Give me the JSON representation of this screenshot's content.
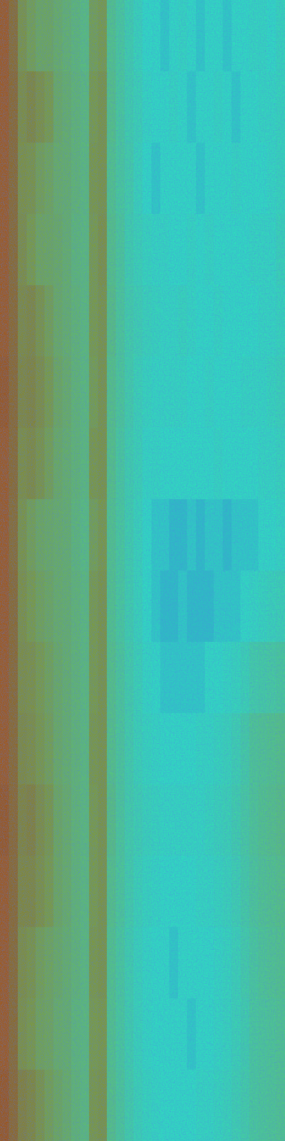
{
  "chart_data": {
    "type": "heatmap",
    "tick_labels": false,
    "zlim": [
      0,
      1
    ],
    "cells": [
      [
        0.9,
        0.74,
        0.62,
        0.58,
        0.55,
        0.55,
        0.53,
        0.51,
        0.49,
        0.47,
        0.58,
        0.6,
        0.44,
        0.4,
        0.36,
        0.33,
        0.3,
        0.3,
        0.29,
        0.3,
        0.31,
        0.3,
        0.29,
        0.3,
        0.3,
        0.29,
        0.3,
        0.3,
        0.31,
        0.31,
        0.3,
        0.32
      ],
      [
        0.9,
        0.76,
        0.64,
        0.66,
        0.63,
        0.6,
        0.54,
        0.52,
        0.5,
        0.48,
        0.6,
        0.62,
        0.45,
        0.4,
        0.36,
        0.34,
        0.31,
        0.3,
        0.3,
        0.31,
        0.3,
        0.29,
        0.3,
        0.3,
        0.31,
        0.3,
        0.29,
        0.3,
        0.3,
        0.31,
        0.31,
        0.32
      ],
      [
        0.89,
        0.75,
        0.63,
        0.62,
        0.58,
        0.56,
        0.53,
        0.52,
        0.5,
        0.48,
        0.61,
        0.62,
        0.44,
        0.4,
        0.37,
        0.33,
        0.3,
        0.29,
        0.3,
        0.3,
        0.3,
        0.3,
        0.29,
        0.3,
        0.3,
        0.3,
        0.31,
        0.3,
        0.3,
        0.3,
        0.31,
        0.32
      ],
      [
        0.9,
        0.75,
        0.64,
        0.6,
        0.56,
        0.55,
        0.54,
        0.52,
        0.49,
        0.48,
        0.6,
        0.63,
        0.45,
        0.41,
        0.36,
        0.34,
        0.32,
        0.31,
        0.31,
        0.3,
        0.3,
        0.31,
        0.3,
        0.31,
        0.3,
        0.3,
        0.3,
        0.3,
        0.31,
        0.31,
        0.31,
        0.33
      ],
      [
        0.9,
        0.76,
        0.65,
        0.66,
        0.62,
        0.58,
        0.54,
        0.52,
        0.5,
        0.48,
        0.6,
        0.62,
        0.46,
        0.41,
        0.37,
        0.35,
        0.33,
        0.32,
        0.31,
        0.31,
        0.32,
        0.31,
        0.3,
        0.3,
        0.31,
        0.3,
        0.3,
        0.3,
        0.3,
        0.31,
        0.31,
        0.32
      ],
      [
        0.91,
        0.76,
        0.66,
        0.67,
        0.64,
        0.6,
        0.55,
        0.53,
        0.5,
        0.48,
        0.59,
        0.62,
        0.45,
        0.41,
        0.37,
        0.34,
        0.32,
        0.31,
        0.31,
        0.31,
        0.31,
        0.3,
        0.3,
        0.31,
        0.3,
        0.3,
        0.3,
        0.31,
        0.31,
        0.31,
        0.32,
        0.33
      ],
      [
        0.9,
        0.75,
        0.64,
        0.65,
        0.62,
        0.58,
        0.54,
        0.52,
        0.5,
        0.48,
        0.61,
        0.62,
        0.45,
        0.4,
        0.36,
        0.34,
        0.31,
        0.31,
        0.3,
        0.3,
        0.3,
        0.3,
        0.3,
        0.3,
        0.31,
        0.3,
        0.3,
        0.3,
        0.3,
        0.31,
        0.31,
        0.32
      ],
      [
        0.9,
        0.74,
        0.62,
        0.58,
        0.55,
        0.54,
        0.53,
        0.52,
        0.49,
        0.47,
        0.58,
        0.61,
        0.44,
        0.4,
        0.36,
        0.33,
        0.3,
        0.29,
        0.29,
        0.28,
        0.28,
        0.29,
        0.28,
        0.29,
        0.29,
        0.28,
        0.29,
        0.29,
        0.29,
        0.3,
        0.3,
        0.31
      ],
      [
        0.9,
        0.75,
        0.63,
        0.6,
        0.57,
        0.55,
        0.53,
        0.52,
        0.5,
        0.48,
        0.6,
        0.62,
        0.44,
        0.4,
        0.36,
        0.33,
        0.3,
        0.29,
        0.28,
        0.28,
        0.29,
        0.28,
        0.28,
        0.28,
        0.29,
        0.29,
        0.29,
        0.3,
        0.31,
        0.32,
        0.33,
        0.34
      ],
      [
        0.9,
        0.76,
        0.64,
        0.63,
        0.6,
        0.57,
        0.54,
        0.52,
        0.5,
        0.48,
        0.6,
        0.62,
        0.45,
        0.41,
        0.37,
        0.34,
        0.31,
        0.3,
        0.29,
        0.29,
        0.29,
        0.29,
        0.29,
        0.3,
        0.3,
        0.31,
        0.32,
        0.34,
        0.37,
        0.38,
        0.39,
        0.4
      ],
      [
        0.9,
        0.76,
        0.65,
        0.64,
        0.61,
        0.58,
        0.54,
        0.52,
        0.5,
        0.48,
        0.61,
        0.62,
        0.45,
        0.41,
        0.37,
        0.34,
        0.32,
        0.31,
        0.3,
        0.3,
        0.3,
        0.3,
        0.31,
        0.31,
        0.32,
        0.33,
        0.35,
        0.38,
        0.42,
        0.43,
        0.44,
        0.45
      ],
      [
        0.91,
        0.77,
        0.67,
        0.68,
        0.64,
        0.61,
        0.55,
        0.53,
        0.5,
        0.48,
        0.6,
        0.62,
        0.46,
        0.41,
        0.37,
        0.35,
        0.33,
        0.32,
        0.31,
        0.31,
        0.31,
        0.31,
        0.31,
        0.32,
        0.33,
        0.34,
        0.36,
        0.39,
        0.42,
        0.44,
        0.45,
        0.46
      ],
      [
        0.9,
        0.76,
        0.66,
        0.66,
        0.63,
        0.6,
        0.55,
        0.53,
        0.5,
        0.48,
        0.6,
        0.62,
        0.45,
        0.41,
        0.37,
        0.34,
        0.32,
        0.31,
        0.3,
        0.3,
        0.3,
        0.3,
        0.31,
        0.31,
        0.32,
        0.33,
        0.35,
        0.38,
        0.41,
        0.43,
        0.44,
        0.45
      ],
      [
        0.9,
        0.75,
        0.64,
        0.62,
        0.58,
        0.56,
        0.54,
        0.52,
        0.5,
        0.48,
        0.61,
        0.62,
        0.44,
        0.4,
        0.36,
        0.33,
        0.31,
        0.3,
        0.3,
        0.29,
        0.3,
        0.3,
        0.3,
        0.3,
        0.31,
        0.32,
        0.34,
        0.37,
        0.4,
        0.42,
        0.43,
        0.44
      ],
      [
        0.9,
        0.75,
        0.63,
        0.61,
        0.57,
        0.56,
        0.53,
        0.52,
        0.49,
        0.48,
        0.6,
        0.61,
        0.44,
        0.4,
        0.36,
        0.33,
        0.31,
        0.3,
        0.3,
        0.3,
        0.3,
        0.29,
        0.3,
        0.3,
        0.31,
        0.32,
        0.34,
        0.36,
        0.4,
        0.41,
        0.42,
        0.43
      ],
      [
        0.91,
        0.77,
        0.68,
        0.66,
        0.62,
        0.58,
        0.55,
        0.53,
        0.5,
        0.48,
        0.61,
        0.62,
        0.45,
        0.41,
        0.37,
        0.34,
        0.32,
        0.31,
        0.3,
        0.3,
        0.3,
        0.3,
        0.31,
        0.31,
        0.32,
        0.33,
        0.35,
        0.37,
        0.4,
        0.41,
        0.42,
        0.43
      ]
    ]
  }
}
